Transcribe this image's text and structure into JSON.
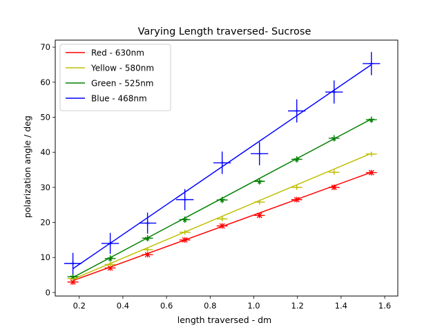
{
  "chart_data": {
    "type": "line",
    "title": "Varying Length traversed- Sucrose",
    "xlabel": "length traversed - dm",
    "ylabel": "polarization angle / deg",
    "xlim": [
      0.09,
      1.66
    ],
    "ylim": [
      -1,
      72
    ],
    "xticks": [
      0.2,
      0.4,
      0.6,
      0.8,
      1.0,
      1.2,
      1.4,
      1.6
    ],
    "xtick_labels": [
      "0.2",
      "0.4",
      "0.6",
      "0.8",
      "1.0",
      "1.2",
      "1.4",
      "1.6"
    ],
    "yticks": [
      0,
      10,
      20,
      30,
      40,
      50,
      60,
      70
    ],
    "ytick_labels": [
      "0",
      "10",
      "20",
      "30",
      "40",
      "50",
      "60",
      "70"
    ],
    "grid": false,
    "legend_position": "upper-left",
    "x": [
      0.171,
      0.342,
      0.513,
      0.684,
      0.855,
      1.026,
      1.197,
      1.368,
      1.539
    ],
    "series": [
      {
        "name": "Red - 630nm",
        "color": "#ff0000",
        "marker": "x",
        "values": [
          3.0,
          7.0,
          10.8,
          15.0,
          19.0,
          22.0,
          26.5,
          30.0,
          34.2
        ],
        "xerr": 0.025,
        "yerr": [
          0.8,
          0.8,
          0.8,
          0.8,
          0.8,
          0.8,
          0.8,
          0.8,
          0.8
        ],
        "fit": [
          3.4,
          34.3
        ]
      },
      {
        "name": "Yellow - 580nm",
        "color": "#bfbf00",
        "marker": "+",
        "values": [
          4.0,
          8.0,
          12.2,
          17.2,
          21.0,
          25.8,
          30.0,
          34.3,
          39.5
        ],
        "xerr": 0.025,
        "yerr": [
          0.6,
          0.6,
          0.6,
          0.6,
          0.6,
          0.6,
          0.6,
          0.6,
          0.6
        ],
        "fit": [
          3.8,
          39.7
        ]
      },
      {
        "name": "Green - 525nm",
        "color": "#008000",
        "marker": "*",
        "values": [
          4.5,
          9.7,
          15.5,
          20.8,
          26.4,
          31.7,
          38.0,
          44.0,
          49.3
        ],
        "xerr": 0.025,
        "yerr": [
          0.9,
          0.9,
          0.9,
          0.9,
          0.9,
          0.9,
          0.9,
          0.9,
          0.9
        ],
        "fit": [
          4.3,
          49.5
        ]
      },
      {
        "name": "Blue - 468nm",
        "color": "#0000ff",
        "marker": "+",
        "values": [
          8.3,
          14.0,
          19.8,
          26.5,
          37.0,
          39.6,
          51.8,
          57.2,
          65.3
        ],
        "xerr": 0.04,
        "yerr": [
          3.0,
          3.0,
          3.0,
          3.0,
          3.2,
          3.3,
          3.3,
          3.3,
          3.3
        ],
        "fit": [
          6.8,
          65.0
        ]
      }
    ]
  }
}
